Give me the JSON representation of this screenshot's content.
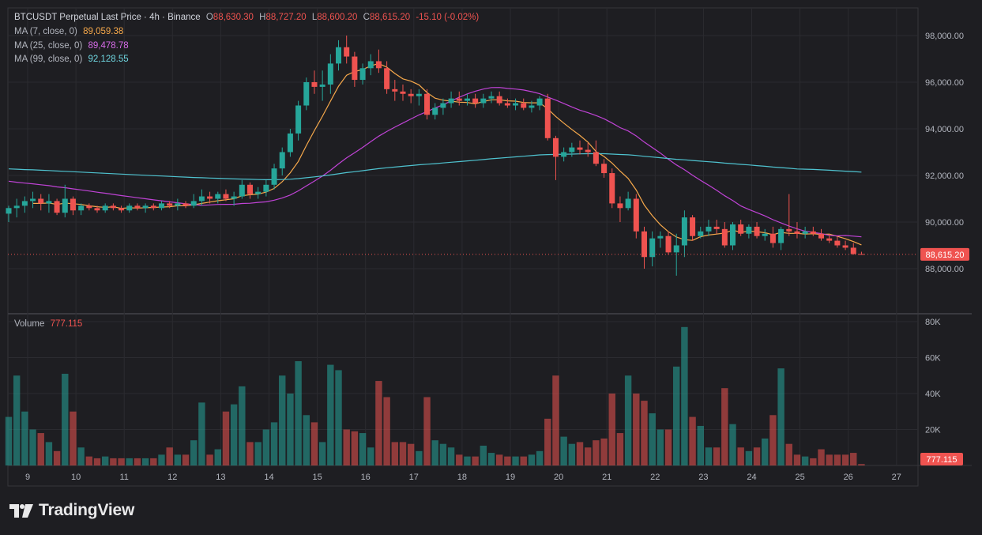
{
  "header": {
    "symbol": "BTCUSDT Perpetual Last Price · 4h · Binance",
    "o_label": "O",
    "o_value": "88,630.30",
    "h_label": "H",
    "h_value": "88,727.20",
    "l_label": "L",
    "l_value": "88,600.20",
    "c_label": "C",
    "c_value": "88,615.20",
    "change": "-15.10 (-0.02%)"
  },
  "indicators": [
    {
      "label": "MA (7, close, 0)",
      "value": "89,059.38",
      "color": "#f7a94b"
    },
    {
      "label": "MA (25, close, 0)",
      "value": "89,478.78",
      "color": "#c043d6"
    },
    {
      "label": "MA (99, close, 0)",
      "value": "92,128.55",
      "color": "#4fc3d0"
    }
  ],
  "volume_legend": {
    "label": "Volume",
    "value": "777.115"
  },
  "price_badge": "88,615.20",
  "volume_badge": "777.115",
  "brand": {
    "name": "TradingView"
  },
  "colors": {
    "up": "#26a69a",
    "down": "#ef5350",
    "background": "#1e1e22",
    "grid": "#2b2b30",
    "text": "#b2b5be"
  },
  "chart_data": {
    "type": "candlestick",
    "title": "BTCUSDT Perpetual Last Price · 4h · Binance",
    "price_axis": {
      "ticks": [
        "98,000.00",
        "96,000.00",
        "94,000.00",
        "92,000.00",
        "90,000.00",
        "88,000.00"
      ],
      "tick_values": [
        98000,
        96000,
        94000,
        92000,
        90000,
        88000
      ]
    },
    "volume_axis": {
      "ticks": [
        "80K",
        "60K",
        "40K",
        "20K"
      ],
      "tick_values": [
        80000,
        60000,
        40000,
        20000
      ]
    },
    "x_ticks": [
      "9",
      "10",
      "11",
      "12",
      "13",
      "14",
      "15",
      "16",
      "17",
      "18",
      "19",
      "20",
      "21",
      "22",
      "23",
      "24",
      "25",
      "26",
      "27"
    ],
    "last_price": 88615.2,
    "candles": [
      [
        90360,
        90700,
        90000,
        90600,
        27000
      ],
      [
        90600,
        91000,
        90200,
        90700,
        50000
      ],
      [
        90700,
        91100,
        90400,
        90900,
        30000
      ],
      [
        90900,
        91300,
        90600,
        91000,
        20000
      ],
      [
        91000,
        91200,
        90500,
        90800,
        18000
      ],
      [
        90800,
        91200,
        90400,
        90900,
        13000
      ],
      [
        90900,
        91000,
        90300,
        90400,
        8000
      ],
      [
        90400,
        91600,
        90200,
        91000,
        51000
      ],
      [
        91000,
        91100,
        90300,
        90500,
        30000
      ],
      [
        90500,
        90800,
        90300,
        90700,
        10000
      ],
      [
        90700,
        90800,
        90500,
        90600,
        5000
      ],
      [
        90600,
        90700,
        90400,
        90500,
        4000
      ],
      [
        90500,
        90800,
        90400,
        90700,
        5000
      ],
      [
        90700,
        90800,
        90500,
        90600,
        4000
      ],
      [
        90600,
        90700,
        90400,
        90500,
        4000
      ],
      [
        90500,
        90800,
        90400,
        90700,
        4000
      ],
      [
        90700,
        90800,
        90500,
        90600,
        4000
      ],
      [
        90600,
        90800,
        90400,
        90700,
        4000
      ],
      [
        90700,
        90800,
        90500,
        90600,
        4000
      ],
      [
        90600,
        90900,
        90500,
        90800,
        6000
      ],
      [
        90800,
        90900,
        90600,
        90700,
        10000
      ],
      [
        90700,
        91000,
        90500,
        90800,
        6000
      ],
      [
        90800,
        90900,
        90600,
        90700,
        6000
      ],
      [
        90700,
        91200,
        90600,
        90900,
        14000
      ],
      [
        90900,
        91400,
        90700,
        91100,
        35000
      ],
      [
        91100,
        91300,
        90800,
        91000,
        6000
      ],
      [
        91000,
        91300,
        90800,
        91200,
        9000
      ],
      [
        91200,
        91400,
        90900,
        91000,
        30000
      ],
      [
        91000,
        91300,
        90700,
        91100,
        34000
      ],
      [
        91100,
        91800,
        91000,
        91600,
        44000
      ],
      [
        91600,
        91700,
        91000,
        91200,
        13000
      ],
      [
        91200,
        91500,
        91000,
        91300,
        13000
      ],
      [
        91300,
        91800,
        91100,
        91600,
        20000
      ],
      [
        91600,
        92500,
        91400,
        92300,
        24000
      ],
      [
        92300,
        93200,
        92000,
        93000,
        50000
      ],
      [
        93000,
        94000,
        92800,
        93800,
        40000
      ],
      [
        93800,
        95200,
        93500,
        95000,
        58000
      ],
      [
        95000,
        96200,
        94800,
        96000,
        28000
      ],
      [
        96000,
        96500,
        95500,
        95800,
        24000
      ],
      [
        95800,
        96500,
        95200,
        95900,
        13000
      ],
      [
        95900,
        97200,
        95500,
        96800,
        56000
      ],
      [
        96800,
        97800,
        96500,
        97500,
        53000
      ],
      [
        97500,
        98000,
        96800,
        97100,
        20000
      ],
      [
        97100,
        97300,
        95800,
        96100,
        19000
      ],
      [
        96100,
        96800,
        95900,
        96600,
        18000
      ],
      [
        96600,
        97200,
        96300,
        96900,
        10000
      ],
      [
        96900,
        97400,
        96400,
        96600,
        47000
      ],
      [
        96600,
        96900,
        95500,
        95700,
        38000
      ],
      [
        95700,
        96100,
        95200,
        95600,
        13000
      ],
      [
        95600,
        95900,
        95200,
        95500,
        13000
      ],
      [
        95500,
        95700,
        95100,
        95400,
        12000
      ],
      [
        95400,
        95700,
        95000,
        95500,
        8000
      ],
      [
        95500,
        95700,
        94400,
        94600,
        38000
      ],
      [
        94600,
        95100,
        94400,
        94900,
        14000
      ],
      [
        94900,
        95300,
        94600,
        95100,
        12000
      ],
      [
        95100,
        95600,
        94900,
        95300,
        10000
      ],
      [
        95300,
        95600,
        95000,
        95200,
        6000
      ],
      [
        95200,
        95500,
        95000,
        95300,
        5000
      ],
      [
        95300,
        95500,
        94900,
        95100,
        5000
      ],
      [
        95100,
        95500,
        94900,
        95300,
        11000
      ],
      [
        95300,
        95600,
        95100,
        95400,
        7000
      ],
      [
        95400,
        95600,
        95000,
        95100,
        6000
      ],
      [
        95100,
        95300,
        94900,
        95000,
        5000
      ],
      [
        95000,
        95300,
        94800,
        95100,
        5000
      ],
      [
        95100,
        95300,
        94800,
        94900,
        5000
      ],
      [
        94900,
        95200,
        94700,
        95000,
        6000
      ],
      [
        95000,
        95400,
        94800,
        95300,
        8000
      ],
      [
        95300,
        95500,
        93500,
        93600,
        26000
      ],
      [
        93600,
        93700,
        91800,
        92800,
        50000
      ],
      [
        92800,
        93200,
        92600,
        93000,
        16000
      ],
      [
        93000,
        93400,
        92800,
        93200,
        12000
      ],
      [
        93200,
        93500,
        92900,
        93100,
        13000
      ],
      [
        93100,
        93400,
        92800,
        93000,
        10000
      ],
      [
        93000,
        93500,
        92400,
        92500,
        14000
      ],
      [
        92500,
        92700,
        91900,
        92100,
        15000
      ],
      [
        92100,
        92300,
        90600,
        90800,
        40000
      ],
      [
        90800,
        91100,
        90000,
        90600,
        18000
      ],
      [
        90600,
        91300,
        90500,
        91000,
        50000
      ],
      [
        91000,
        91200,
        89300,
        89600,
        40000
      ],
      [
        89600,
        89800,
        88000,
        88500,
        36000
      ],
      [
        88500,
        89600,
        88100,
        89300,
        29000
      ],
      [
        89300,
        89600,
        88900,
        89400,
        20000
      ],
      [
        89400,
        89600,
        88600,
        88700,
        20000
      ],
      [
        88700,
        89500,
        87700,
        89000,
        55000
      ],
      [
        89000,
        90500,
        88500,
        90200,
        77000
      ],
      [
        90200,
        90300,
        89200,
        89400,
        27000
      ],
      [
        89400,
        89800,
        89300,
        89600,
        22000
      ],
      [
        89600,
        90100,
        89400,
        89800,
        10000
      ],
      [
        89800,
        90100,
        89500,
        89700,
        10000
      ],
      [
        89700,
        90000,
        88900,
        89000,
        43000
      ],
      [
        89000,
        90000,
        88800,
        89900,
        23000
      ],
      [
        89900,
        90100,
        89400,
        89500,
        10000
      ],
      [
        89500,
        89900,
        89300,
        89800,
        8000
      ],
      [
        89800,
        90000,
        89300,
        89400,
        10000
      ],
      [
        89400,
        89700,
        89200,
        89500,
        15000
      ],
      [
        89500,
        89800,
        88900,
        89100,
        28000
      ],
      [
        89100,
        89800,
        88800,
        89700,
        54000
      ],
      [
        89700,
        91200,
        89400,
        89600,
        12000
      ],
      [
        89600,
        90000,
        89300,
        89500,
        6000
      ],
      [
        89500,
        89800,
        89300,
        89600,
        5000
      ],
      [
        89600,
        89800,
        89400,
        89500,
        4000
      ],
      [
        89500,
        89700,
        89200,
        89300,
        9000
      ],
      [
        89300,
        89500,
        89100,
        89200,
        6000
      ],
      [
        89200,
        89400,
        88900,
        89000,
        6000
      ],
      [
        89000,
        89200,
        88800,
        88900,
        6000
      ],
      [
        88900,
        89100,
        88600,
        88630,
        7000
      ],
      [
        88630,
        88727,
        88600,
        88615,
        777
      ]
    ],
    "moving_averages": [
      {
        "label": "MA (7, close, 0)",
        "period": 7,
        "color": "#f7a94b"
      },
      {
        "label": "MA (25, close, 0)",
        "period": 25,
        "color": "#c043d6"
      },
      {
        "label": "MA (99, close, 0)",
        "period": 99,
        "color": "#4fc3d0"
      }
    ]
  }
}
